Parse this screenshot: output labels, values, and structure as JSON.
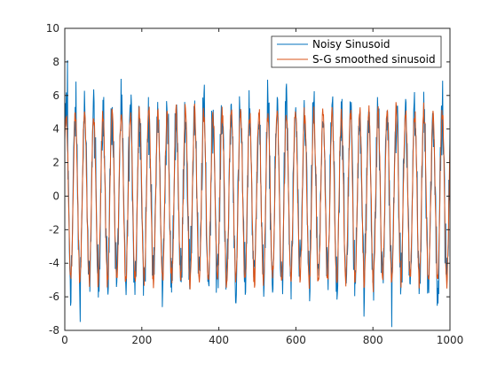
{
  "chart_data": {
    "type": "line",
    "title": "",
    "xlabel": "",
    "ylabel": "",
    "xlim": [
      0,
      1000
    ],
    "ylim": [
      -8,
      10
    ],
    "xticks": [
      0,
      200,
      400,
      600,
      800,
      1000
    ],
    "yticks": [
      -8,
      -6,
      -4,
      -2,
      0,
      2,
      4,
      6,
      8,
      10
    ],
    "grid": false,
    "legend_position": "top-right",
    "signal": {
      "cycles_per_1000_samples": 42,
      "amplitude": 5,
      "offset": 0,
      "n_points": 1000
    },
    "series": [
      {
        "name": "Noisy Sinusoid",
        "color": "#0072BD",
        "noise_amplitude": 1.1,
        "observed_max": 8.1,
        "observed_min": -7.8
      },
      {
        "name": "S-G smoothed sinusoid",
        "color": "#D95319",
        "noise_amplitude": 0.35
      }
    ]
  }
}
